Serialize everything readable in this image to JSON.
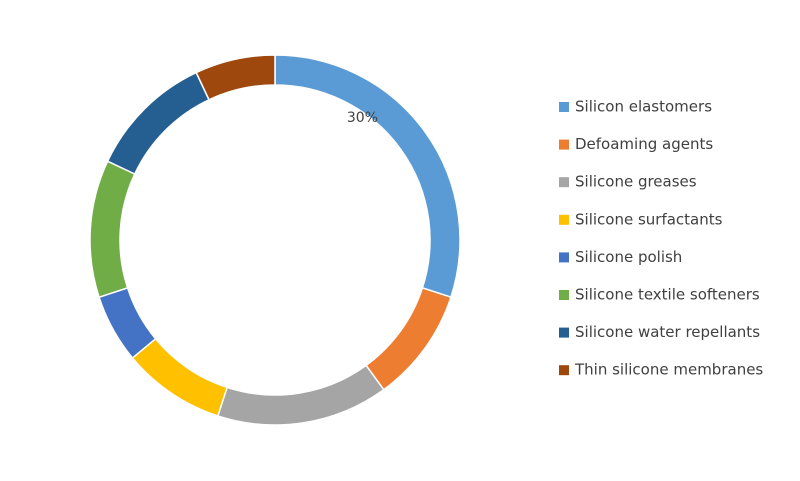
{
  "chart_data": {
    "type": "donut",
    "categories": [
      "Silicon elastomers",
      "Defoaming agents",
      "Silicone greases",
      "Silicone surfactants",
      "Silicone polish",
      "Silicone textile softeners",
      "Silicone water repellants",
      "Thin silicone membranes"
    ],
    "values": [
      30,
      10,
      15,
      9,
      6,
      12,
      11,
      7
    ],
    "value_labels": [
      "30%",
      null,
      null,
      null,
      null,
      null,
      null,
      null
    ],
    "colors": [
      "#5b9bd5",
      "#ed7d31",
      "#a5a5a5",
      "#ffc000",
      "#4472c4",
      "#70ad47",
      "#255e91",
      "#9e480e"
    ],
    "legend": "right"
  }
}
